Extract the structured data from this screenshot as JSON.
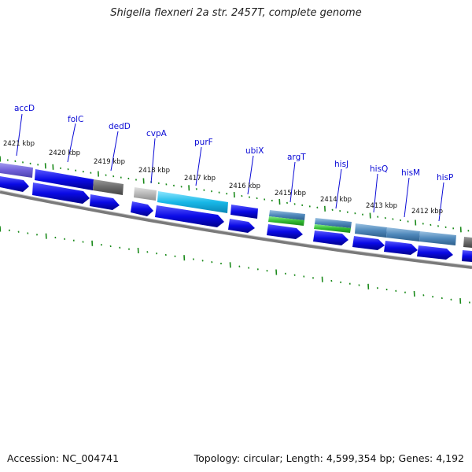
{
  "title": "Shigella flexneri 2a str. 2457T, complete genome",
  "footer": {
    "accession": "Accession: NC_004741",
    "summary": "Topology: circular; Length: 4,599,354 bp; Genes: 4,192"
  },
  "gene_labels": [
    "accD",
    "folC",
    "dedD",
    "cvpA",
    "purF",
    "ubiX",
    "argT",
    "hisJ",
    "hisQ",
    "hisM",
    "hisP"
  ],
  "kbp_labels": [
    "2421 kbp",
    "2420 kbp",
    "2419 kbp",
    "2418 kbp",
    "2417 kbp",
    "2416 kbp",
    "2415 kbp",
    "2414 kbp",
    "2413 kbp",
    "2412 kbp"
  ],
  "colors": {
    "cds_forward": "#0a0ae6",
    "cds_lavender": "#7060d8",
    "cds_cyan": "#18b8e8",
    "cds_steel": "#4f88bb",
    "cds_grey": "#6a6a6a",
    "cds_light_grey": "#b8b8b8",
    "rna_green": "#33bb33",
    "backbone": "#777777",
    "tick_green": "#1a8a1a",
    "label_blue": "#0a0ad6"
  }
}
